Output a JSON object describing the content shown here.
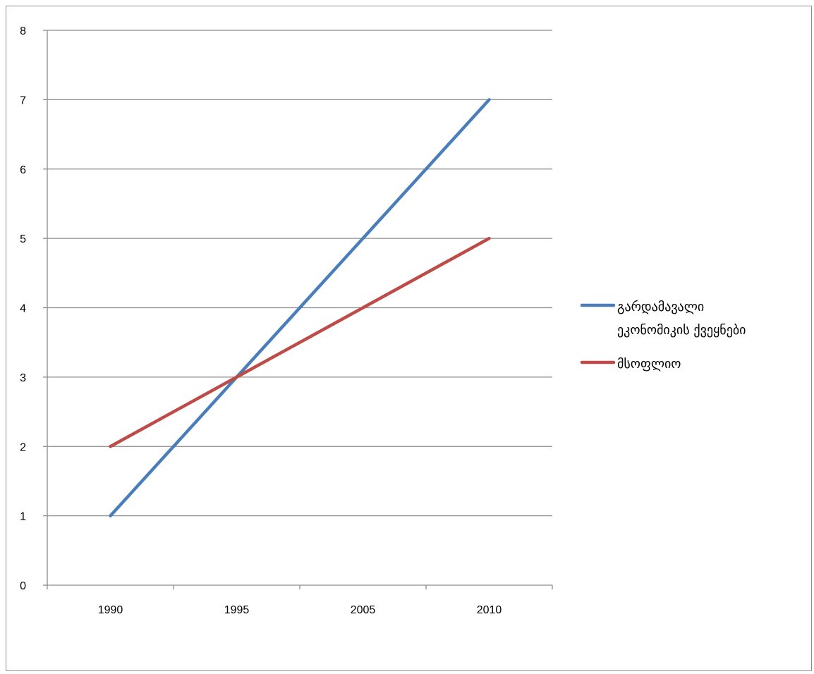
{
  "chart_data": {
    "type": "line",
    "categories": [
      "1990",
      "1995",
      "2005",
      "2010"
    ],
    "ylim": [
      0,
      8
    ],
    "y_ticks": [
      0,
      1,
      2,
      3,
      4,
      5,
      6,
      7,
      8
    ],
    "grid": true,
    "legend_position": "right",
    "series": [
      {
        "name": "გარდამავალი ეკონომიკის ქვეყნები",
        "legend_lines": [
          "გარდამავალი",
          "ეკონომიკის ქვეყნები"
        ],
        "color": "#4a7ebb",
        "values": [
          1,
          3,
          5,
          7
        ]
      },
      {
        "name": "მსოფლიო",
        "legend_lines": [
          "მსოფლიო"
        ],
        "color": "#be4b48",
        "values": [
          2,
          3,
          4,
          5
        ]
      }
    ]
  }
}
